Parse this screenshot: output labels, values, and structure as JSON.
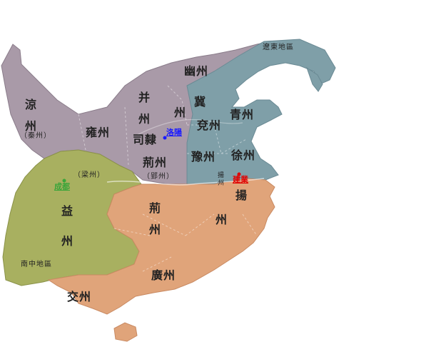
{
  "regions": {
    "liangzhou": "涼州",
    "liangzhou_sub": "（秦州）",
    "yongzhou": "雍州",
    "bingzhou": "并州",
    "sili": "司隸",
    "youzhou": "幽州",
    "jizhou_a": "冀",
    "jizhou_b": "州",
    "qingzhou": "青州",
    "yanzhou": "兗州",
    "yuzhou": "豫州",
    "xuzhou": "徐州",
    "jingzhou_north": "荊州",
    "jingzhou_north_sub": "（郢州）",
    "yangzhou_small": "揚州",
    "yangzhou_big": "揚",
    "jingzhou_south": "荊州",
    "yangzhou_south": "州",
    "yizhou": "益州",
    "yizhou_sub": "（梁州）",
    "guangzhou": "廣州",
    "jiaozhou": "交州",
    "liaodong": "遼東地區",
    "nanzhong": "南中地區"
  },
  "capitals": [
    {
      "name": "洛陽",
      "color": "#1a1aff"
    },
    {
      "name": "建業",
      "color": "#e00000"
    },
    {
      "name": "成都",
      "color": "#3aa53a"
    }
  ],
  "colors": {
    "wei": "#a99aa8",
    "wei_east": "#7f9fa8",
    "shu": "#a8b060",
    "wu": "#e0a47a",
    "sea": "#ffffff"
  }
}
